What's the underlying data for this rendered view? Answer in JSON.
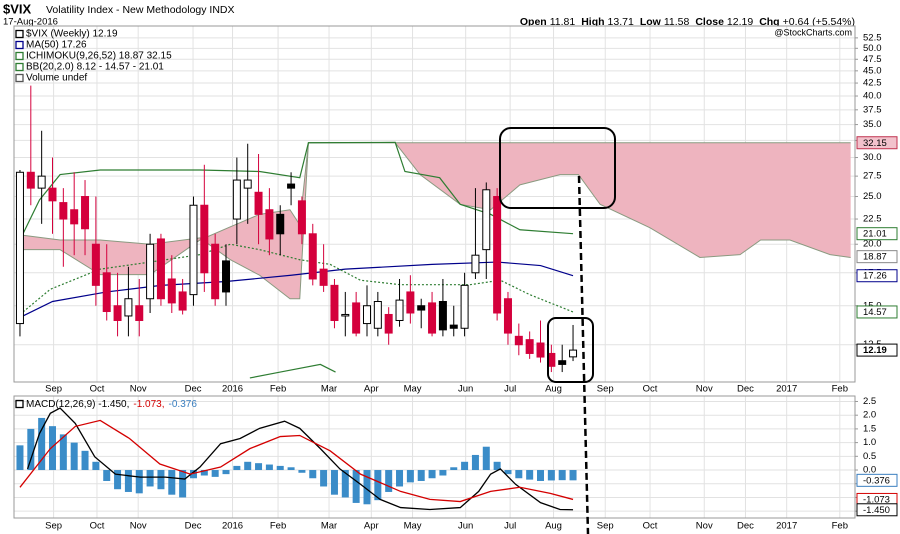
{
  "chart_data": [
    {
      "type": "candlestick",
      "title": "$VIX",
      "subtitle": "Volatility Index - New Methodology INDX",
      "date": "17-Aug-2016",
      "quote": [
        {
          "label": "Open",
          "value": 11.81
        },
        {
          "label": "High",
          "value": 13.71
        },
        {
          "label": "Low",
          "value": 11.58
        },
        {
          "label": "Close",
          "value": 12.19
        },
        {
          "label": "Chg",
          "value": "+0.64 (+5.54%)"
        }
      ],
      "source": "@StockCharts.com",
      "legend": [
        {
          "text": "$VIX (Weekly) 12.19",
          "color": "#000000"
        },
        {
          "text": "MA(50) 17.26",
          "color": "#00008b"
        },
        {
          "text": "ICHIMOKU(9,26,52) 18.87 32.15",
          "color": "#2e7d32"
        },
        {
          "text": "BB(20,2.0) 8.12 - 14.57 - 21.01",
          "color": "#2e7d32"
        },
        {
          "text": "Volume undef",
          "color": "#555555"
        }
      ],
      "log_scale": true,
      "grid": true,
      "xlim": [
        -0.55,
        77.0
      ],
      "xticks": [
        {
          "value": 3.1,
          "label": "Sep"
        },
        {
          "value": 7.1,
          "label": "Oct"
        },
        {
          "value": 10.9,
          "label": "Nov"
        },
        {
          "value": 15.96,
          "label": "Dec"
        },
        {
          "value": 19.6,
          "label": "2016"
        },
        {
          "value": 23.8,
          "label": "Feb"
        },
        {
          "value": 28.5,
          "label": "Mar"
        },
        {
          "value": 32.4,
          "label": "Apr"
        },
        {
          "value": 36.2,
          "label": "May"
        },
        {
          "value": 41.1,
          "label": "Jun"
        },
        {
          "value": 45.2,
          "label": "Jul"
        },
        {
          "value": 49.2,
          "label": "Aug"
        },
        {
          "value": 53.97,
          "label": "Sep"
        },
        {
          "value": 58.1,
          "label": "Oct"
        },
        {
          "value": 63.1,
          "label": "Nov"
        },
        {
          "value": 66.9,
          "label": "Dec"
        },
        {
          "value": 70.7,
          "label": "2017"
        },
        {
          "value": 75.6,
          "label": "Feb"
        }
      ],
      "ylim": [
        10.5,
        55.5
      ],
      "yticks": [
        52.5,
        {
          "value": 50,
          "label": "50.0"
        },
        47.5,
        {
          "value": 45,
          "label": "45.0"
        },
        42.5,
        {
          "value": 40,
          "label": "40.0"
        },
        37.5,
        {
          "value": 35,
          "label": "35.0"
        },
        32.5,
        {
          "value": 30,
          "label": "30.0"
        },
        27.5,
        {
          "value": 25,
          "label": "25.0"
        },
        22.5,
        {
          "value": 20,
          "label": "20.0"
        },
        17.5,
        {
          "value": 15,
          "label": "15.0"
        },
        12.5
      ],
      "up_color": "#ffffff",
      "down_color": "#d4003c",
      "down_rising_color": "#000000",
      "open": [
        13.8,
        28,
        26,
        26,
        24.3,
        23.5,
        25,
        20,
        17.5,
        15,
        14.3,
        15,
        15.5,
        20.5,
        17,
        16,
        15.8,
        24,
        20,
        18.5,
        22.5,
        26,
        25.5,
        23.5,
        23,
        26.5,
        24.5,
        21,
        17.8,
        16.5,
        14.3,
        15.2,
        13.8,
        13.5,
        14.4,
        14,
        16,
        15,
        15.2,
        15.3,
        13.7,
        13.5,
        17.5,
        19.5,
        25,
        15.5,
        13,
        12.8,
        12.6,
        12,
        11.6,
        11.81
      ],
      "high": [
        28.3,
        42,
        34,
        30,
        26,
        28,
        27,
        25,
        20,
        17.5,
        18,
        17,
        21,
        21,
        19,
        17,
        25,
        29,
        21,
        20,
        30,
        32,
        30.5,
        26,
        24,
        28,
        25,
        22,
        20,
        17,
        16,
        16,
        16.5,
        16,
        14.9,
        17,
        17.3,
        15.5,
        16,
        17,
        15,
        17.5,
        26,
        26.7,
        26,
        16,
        13.8,
        13.3,
        14,
        12.5,
        12.5,
        13.71
      ],
      "low": [
        13,
        24,
        22,
        21,
        18,
        19,
        19,
        15,
        14,
        13,
        13,
        13,
        14.5,
        15,
        14.5,
        14.4,
        15,
        16,
        15,
        15,
        20,
        22,
        20,
        19,
        19,
        24,
        20,
        16.5,
        16,
        13.5,
        13,
        13,
        13,
        13,
        12.5,
        13.6,
        13.8,
        13.5,
        13,
        13,
        13,
        13,
        17,
        17,
        14,
        12.5,
        11.9,
        11.7,
        11.5,
        11,
        11,
        11.58
      ],
      "close": [
        28,
        26,
        27.5,
        24.5,
        22.5,
        22,
        21.5,
        16.5,
        14.6,
        14,
        15.5,
        14,
        20,
        15.5,
        15.2,
        14.7,
        24,
        17.5,
        15.5,
        16,
        27,
        27,
        23,
        20.5,
        21,
        26,
        21,
        17,
        16.5,
        14,
        14.4,
        13.2,
        15,
        15.3,
        13.2,
        15.4,
        14.5,
        14.7,
        13.2,
        13.4,
        13.5,
        16.5,
        19,
        25.8,
        14.5,
        13.2,
        12.5,
        12,
        11.8,
        11.3,
        11.4,
        12.19
      ],
      "cloud": {
        "color": "#eeb4bf",
        "edge_color": "#8a9a80",
        "x": [
          0,
          3.7,
          7.4,
          12,
          16.6,
          19.4,
          22.1,
          24.9,
          25.8,
          26.6,
          34.6,
          36.9,
          40.6,
          43.4,
          46.1,
          49.8,
          51.5,
          53.5,
          58.1,
          62.7,
          66.4,
          68.3,
          71,
          74.7,
          76.6
        ],
        "span_a": [
          20.9,
          20.4,
          20.4,
          20.0,
          20.6,
          18.6,
          17.3,
          15.5,
          15.5,
          32.15,
          32.15,
          27.7,
          24.1,
          23.5,
          26.4,
          27.7,
          27.7,
          24.1,
          21.6,
          18.8,
          19.05,
          20.4,
          20.4,
          19.05,
          18.8
        ],
        "span_b": [
          19.5,
          19.5,
          17.35,
          17.35,
          20.4,
          21.7,
          23.0,
          23.5,
          21.9,
          32.15,
          32.15,
          32.15,
          32.15,
          32.15,
          32.15,
          32.15,
          32.15,
          32.15,
          32.15,
          32.15,
          32.15,
          32.15,
          32.15,
          32.15,
          32.15
        ]
      },
      "overlays": [
        {
          "color": "#00008b",
          "dash": false,
          "x": [
            0,
            3,
            8,
            13,
            19,
            25,
            30,
            38,
            44,
            48,
            51
          ],
          "values": [
            14.2,
            15.3,
            16,
            16.5,
            16.8,
            17.3,
            17.8,
            18.2,
            18.4,
            18.1,
            17.26
          ]
        },
        {
          "color": "#2e7d32",
          "dash": false,
          "x": [
            0,
            1.8,
            3.7,
            7.4,
            16.6,
            22.1,
            25.8,
            26.6,
            34.6,
            35.5,
            38.7,
            40.6,
            43.4,
            46.1,
            51
          ],
          "values": [
            20.4,
            24.6,
            27.7,
            28.3,
            28.3,
            28.1,
            27.3,
            32.15,
            32.2,
            28.1,
            27.3,
            24.1,
            23.0,
            21.4,
            21.01
          ]
        },
        {
          "color": "#2e7d32",
          "dash": true,
          "x": [
            0,
            2.8,
            7.4,
            12,
            16.6,
            19.4,
            22.1,
            25.8,
            28.6,
            31.4,
            35.1,
            38.7,
            41.5,
            44.3,
            47,
            51
          ],
          "values": [
            14.4,
            16.2,
            17.8,
            18.4,
            19.05,
            20.0,
            19.5,
            18.6,
            18.2,
            16.9,
            16.55,
            16.55,
            16.55,
            16.9,
            15.8,
            14.57
          ]
        },
        {
          "color": "#2e7d32",
          "dash": false,
          "x": [
            21.2,
            24,
            27.7,
            29.1
          ],
          "values": [
            10.7,
            11.0,
            11.4,
            11.0
          ]
        }
      ],
      "last_labels": [
        {
          "value": 32.15,
          "label": "32.15",
          "color": "#c0334f",
          "fill": "#f2c2cc"
        },
        {
          "value": 21.01,
          "label": "21.01",
          "color": "#2e7d32",
          "fill": "#ffffff"
        },
        {
          "value": 18.87,
          "label": "18.87",
          "color": "#888888",
          "fill": "#ffffff"
        },
        {
          "value": 17.26,
          "label": "17.26",
          "color": "#00008b",
          "fill": "#ffffff"
        },
        {
          "value": 14.57,
          "label": "14.57",
          "color": "#2e7d32",
          "fill": "#ffffff"
        },
        {
          "value": 12.19,
          "label": "12.19",
          "color": "#000000",
          "fill": "#ffffff"
        }
      ]
    },
    {
      "type": "macd",
      "legend_parts": [
        {
          "text": "MACD(12,26,9) -1.450,",
          "color": "#000000"
        },
        {
          "text": "-1.073,",
          "color": "#d40000"
        },
        {
          "text": "-0.376",
          "color": "#3a7ebf"
        }
      ],
      "grid": true,
      "xlim": [
        -0.55,
        77.0
      ],
      "xticks": [
        {
          "value": 3.1,
          "label": "Sep"
        },
        {
          "value": 7.1,
          "label": "Oct"
        },
        {
          "value": 10.9,
          "label": "Nov"
        },
        {
          "value": 15.96,
          "label": "Dec"
        },
        {
          "value": 19.6,
          "label": "2016"
        },
        {
          "value": 23.8,
          "label": "Feb"
        },
        {
          "value": 28.5,
          "label": "Mar"
        },
        {
          "value": 32.4,
          "label": "Apr"
        },
        {
          "value": 36.2,
          "label": "May"
        },
        {
          "value": 41.1,
          "label": "Jun"
        },
        {
          "value": 45.2,
          "label": "Jul"
        },
        {
          "value": 49.2,
          "label": "Aug"
        },
        {
          "value": 53.97,
          "label": "Sep"
        },
        {
          "value": 58.1,
          "label": "Oct"
        },
        {
          "value": 63.1,
          "label": "Nov"
        },
        {
          "value": 66.9,
          "label": "Dec"
        },
        {
          "value": 70.7,
          "label": "2017"
        },
        {
          "value": 75.6,
          "label": "Feb"
        }
      ],
      "ylim": [
        -1.75,
        2.7
      ],
      "yticks": [
        2.5,
        {
          "value": 2,
          "label": "2.0"
        },
        1.5,
        {
          "value": 1,
          "label": "1.0"
        },
        0.5,
        {
          "value": 0,
          "label": "0.0"
        },
        -0.5,
        {
          "value": -1,
          "label": "-1.0"
        },
        -1.5
      ],
      "histogram": {
        "color": "#3a8cc8",
        "values": [
          0.9,
          1.5,
          1.9,
          1.6,
          1.3,
          1.0,
          0.7,
          0.3,
          -0.4,
          -0.7,
          -0.8,
          -0.85,
          -0.6,
          -0.7,
          -0.9,
          -1.0,
          -0.3,
          -0.2,
          -0.25,
          -0.15,
          0.15,
          0.3,
          0.25,
          0.2,
          0.15,
          0.1,
          -0.1,
          -0.3,
          -0.6,
          -0.9,
          -1.0,
          -1.2,
          -1.25,
          -1.1,
          -0.8,
          -0.6,
          -0.45,
          -0.4,
          -0.3,
          -0.2,
          0.1,
          0.3,
          0.55,
          0.85,
          0.3,
          -0.15,
          -0.3,
          -0.35,
          -0.4,
          -0.38,
          -0.37,
          -0.376
        ]
      },
      "lines": [
        {
          "color": "#000000",
          "x": [
            0.7,
            1.8,
            2.8,
            3.7,
            5.1,
            6.9,
            8.8,
            11.1,
            13.4,
            15.2,
            16.6,
            18.5,
            20.3,
            22.1,
            24.4,
            25.8,
            27.7,
            29.5,
            31.4,
            33.2,
            35.1,
            37.8,
            40.6,
            42.3,
            43.4,
            44.3,
            45.7,
            48,
            49.8,
            51
          ],
          "values": [
            0.04,
            1.33,
            2.07,
            2.26,
            1.7,
            0.48,
            -0.15,
            -0.26,
            -0.26,
            -0.33,
            0.11,
            0.96,
            1.15,
            1.52,
            1.78,
            1.52,
            0.78,
            0.04,
            -0.52,
            -1.07,
            -1.37,
            -1.44,
            -1.37,
            -0.78,
            -0.15,
            0.04,
            -0.52,
            -1.19,
            -1.44,
            -1.45
          ]
        },
        {
          "color": "#d40000",
          "x": [
            0,
            2.8,
            5.1,
            7.4,
            10.1,
            12.9,
            15.7,
            18.5,
            21.2,
            24,
            25.8,
            28.6,
            31.4,
            35.1,
            37.8,
            40.6,
            43.4,
            46.1,
            48.9,
            51
          ],
          "values": [
            -0.63,
            0.78,
            1.59,
            1.81,
            1.15,
            0.22,
            -0.15,
            0.11,
            0.78,
            1.22,
            1.26,
            0.7,
            -0.15,
            -0.78,
            -1.07,
            -1.15,
            -0.78,
            -0.63,
            -0.85,
            -1.073
          ]
        }
      ],
      "last_labels": [
        {
          "value": -0.376,
          "label": "-0.376",
          "color": "#3a7ebf",
          "fill": "#ffffff"
        },
        {
          "value": -1.073,
          "label": "-1.073",
          "color": "#d40000",
          "fill": "#ffffff"
        },
        {
          "value": -1.45,
          "label": "-1.450",
          "color": "#000000",
          "fill": "#ffffff"
        }
      ]
    }
  ]
}
